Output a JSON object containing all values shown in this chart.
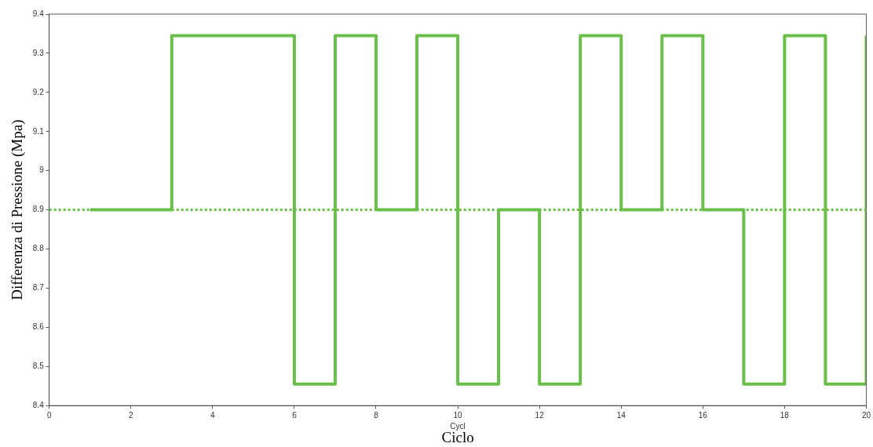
{
  "chart_data": {
    "type": "step",
    "xlabel": "Ciclo",
    "ylabel": "Differenza di Pressione (Mpa)",
    "annotations": [
      "Cycl"
    ],
    "x": [
      1,
      2,
      3,
      4,
      5,
      6,
      7,
      8,
      9,
      10,
      11,
      12,
      13,
      14,
      15,
      16,
      17,
      18,
      19,
      20
    ],
    "series": [
      {
        "color": "#6abf4b",
        "values": [
          8.9,
          8.9,
          9.345,
          9.345,
          9.345,
          8.455,
          9.345,
          8.9,
          9.345,
          8.455,
          8.9,
          8.455,
          9.345,
          8.9,
          9.345,
          8.9,
          8.455,
          9.345,
          8.455,
          9.345
        ]
      }
    ],
    "xlim": [
      0,
      20
    ],
    "xticks": [
      0,
      2,
      4,
      6,
      8,
      10,
      12,
      14,
      16,
      18,
      20
    ],
    "ylim": [
      8.4,
      9.4
    ],
    "yticks": [
      8.4,
      8.5,
      8.6,
      8.7,
      8.8,
      8.9,
      9,
      9.1,
      9.2,
      9.3,
      9.4
    ],
    "ref_lines": [
      {
        "axis": "y",
        "value": 8.9,
        "color": "#6abf4b",
        "line_style": "dotted"
      }
    ],
    "grid": false,
    "legend": false,
    "marker": "none",
    "line_style": "solid"
  }
}
